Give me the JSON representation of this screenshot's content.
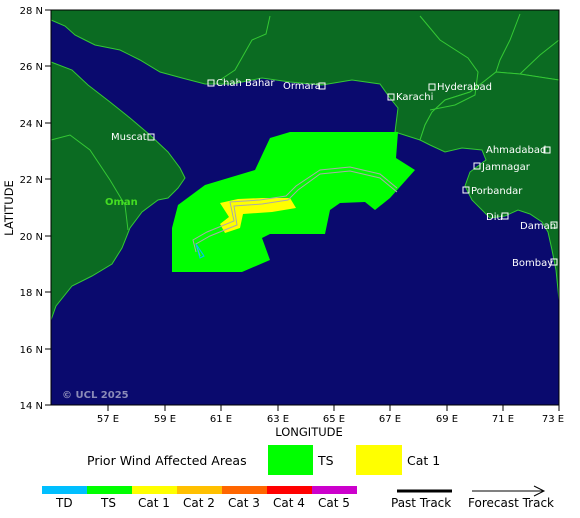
{
  "map": {
    "axes": {
      "y_title": "LATITUDE",
      "x_title": "LONGITUDE",
      "lat_ticks": [
        "28 N",
        "26 N",
        "24 N",
        "22 N",
        "20 N",
        "18 N",
        "16 N",
        "14 N"
      ],
      "lon_ticks": [
        "57 E",
        "59 E",
        "61 E",
        "63 E",
        "65 E",
        "67 E",
        "69 E",
        "71 E",
        "73 E"
      ]
    },
    "cities": [
      {
        "name": "Chah Bahar"
      },
      {
        "name": "Ormara"
      },
      {
        "name": "Karachi"
      },
      {
        "name": "Hyderabad"
      },
      {
        "name": "Muscat"
      },
      {
        "name": "Ahmadabad"
      },
      {
        "name": "Jamnagar"
      },
      {
        "name": "Porbandar"
      },
      {
        "name": "Diu"
      },
      {
        "name": "Daman"
      },
      {
        "name": "Bombay"
      }
    ],
    "region_label": "Oman",
    "copyright": "© UCL 2025",
    "colors": {
      "ocean": "#0a0a6e",
      "land": "#0b6b22",
      "border": "#34c834",
      "ts": "#00ff00",
      "cat1": "#ffff00",
      "track": "#aaaaaa"
    }
  },
  "legend": {
    "prior_label": "Prior Wind Affected Areas",
    "ts_label": "TS",
    "cat1_label": "Cat 1"
  },
  "scale": [
    {
      "label": "TD",
      "color": "#00bfff"
    },
    {
      "label": "TS",
      "color": "#00ff00"
    },
    {
      "label": "Cat 1",
      "color": "#ffff00"
    },
    {
      "label": "Cat 2",
      "color": "#ffc000"
    },
    {
      "label": "Cat 3",
      "color": "#ff6600"
    },
    {
      "label": "Cat 4",
      "color": "#ff0000"
    },
    {
      "label": "Cat 5",
      "color": "#cc00cc"
    }
  ],
  "track_legend": {
    "past": "Past Track",
    "forecast": "Forecast Track"
  }
}
